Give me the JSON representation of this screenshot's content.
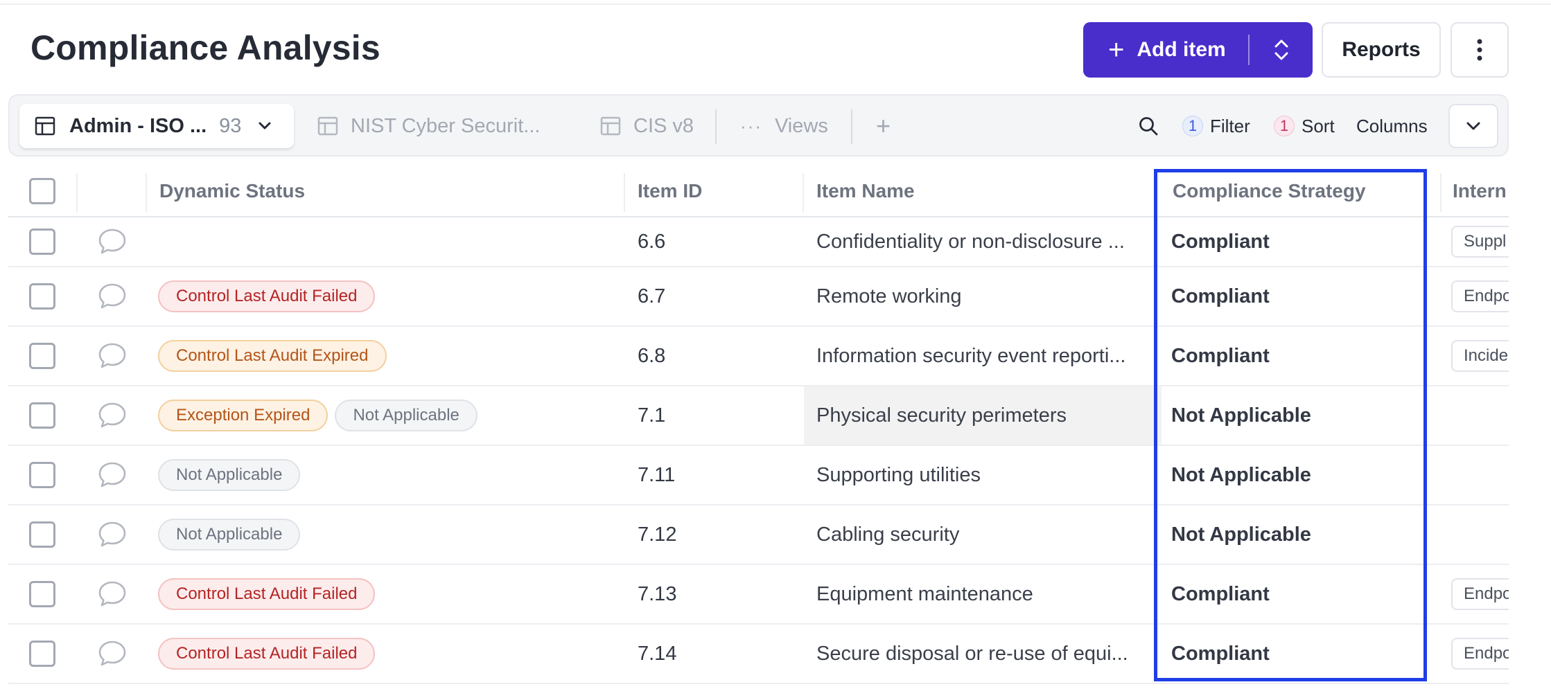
{
  "header": {
    "title": "Compliance Analysis",
    "add_item_label": "Add item",
    "reports_label": "Reports"
  },
  "views": {
    "active": {
      "label": "Admin - ISO ...",
      "count": "93"
    },
    "tabs": [
      {
        "label": "NIST Cyber Securit..."
      },
      {
        "label": "CIS v8"
      },
      {
        "label": "Views"
      }
    ],
    "filter": {
      "count": "1",
      "label": "Filter"
    },
    "sort": {
      "count": "1",
      "label": "Sort"
    },
    "columns_label": "Columns"
  },
  "table": {
    "columns": {
      "dynamic_status": "Dynamic Status",
      "item_id": "Item ID",
      "item_name": "Item Name",
      "compliance_strategy": "Compliance Strategy",
      "internal": "Intern"
    },
    "rows": [
      {
        "statuses": [],
        "item_id": "6.6",
        "item_name": "Confidentiality or non-disclosure ...",
        "strategy": "Compliant",
        "internal": "Suppl"
      },
      {
        "statuses": [
          {
            "label": "Control Last Audit Failed",
            "tone": "red"
          }
        ],
        "item_id": "6.7",
        "item_name": "Remote working",
        "strategy": "Compliant",
        "internal": "Endpo"
      },
      {
        "statuses": [
          {
            "label": "Control Last Audit Expired",
            "tone": "orange"
          }
        ],
        "item_id": "6.8",
        "item_name": "Information security event reporti...",
        "strategy": "Compliant",
        "internal": "Incide"
      },
      {
        "statuses": [
          {
            "label": "Exception Expired",
            "tone": "orange"
          },
          {
            "label": "Not Applicable",
            "tone": "gray"
          }
        ],
        "item_id": "7.1",
        "item_name": "Physical security perimeters",
        "strategy": "Not Applicable",
        "internal": "",
        "hovered": true
      },
      {
        "statuses": [
          {
            "label": "Not Applicable",
            "tone": "gray"
          }
        ],
        "item_id": "7.11",
        "item_name": "Supporting utilities",
        "strategy": "Not Applicable",
        "internal": ""
      },
      {
        "statuses": [
          {
            "label": "Not Applicable",
            "tone": "gray"
          }
        ],
        "item_id": "7.12",
        "item_name": "Cabling security",
        "strategy": "Not Applicable",
        "internal": ""
      },
      {
        "statuses": [
          {
            "label": "Control Last Audit Failed",
            "tone": "red"
          }
        ],
        "item_id": "7.13",
        "item_name": "Equipment maintenance",
        "strategy": "Compliant",
        "internal": "Endpo"
      },
      {
        "statuses": [
          {
            "label": "Control Last Audit Failed",
            "tone": "red"
          }
        ],
        "item_id": "7.14",
        "item_name": "Secure disposal or re-use of equi...",
        "strategy": "Compliant",
        "internal": "Endpo"
      }
    ]
  },
  "colors": {
    "accent": "#4a2ecb",
    "highlight": "#1f3ee8",
    "status_red": "#b42424",
    "status_orange": "#b4541a",
    "status_gray": "#6d737f"
  },
  "icons": {
    "add": "plus-icon",
    "add_menu": "chevron-up-down-icon",
    "more": "vertical-ellipsis-icon",
    "view": "table-icon",
    "search": "search-icon",
    "expand": "chevron-down-icon",
    "comment": "comment-icon"
  }
}
